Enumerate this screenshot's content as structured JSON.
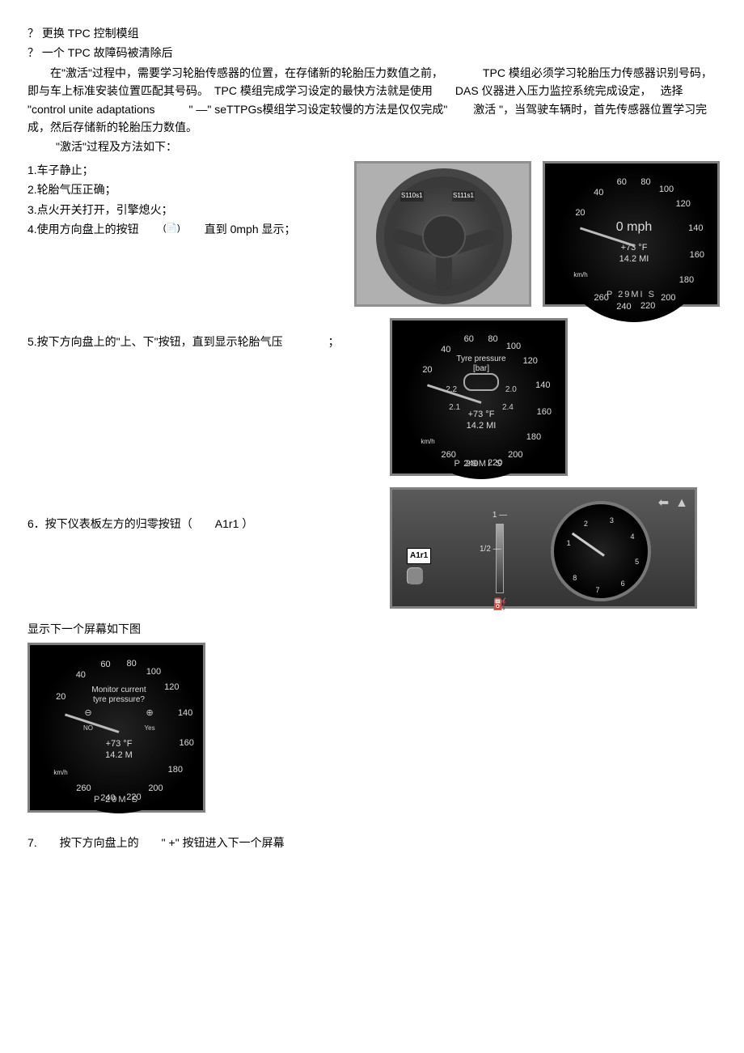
{
  "top_lines": [
    "？ 更换 TPC 控制模组",
    "？ 一个 TPC 故障码被清除后"
  ],
  "paragraph1": "在\"激活\"过程中，需要学习轮胎传感器的位置，在存储新的轮胎压力数值之前，　　　　TPC 模组必须学习轮胎压力传感器识别号码，　即与车上标准安装位置匹配其号码。　TPC 模组完成学习设定的最快方法就是使用　　DAS 仪器进入压力监控系统完成设定，　 选择 \"control unite adaptations　　　\" —\" seTTPGs模组学习设定较慢的方法是仅仅完成\"　　 激活 \"，当驾驶车辆时，首先传感器位置学习完成，然后存储新的轮胎压力数值。",
  "activation_heading": "\"激活\"过程及方法如下：",
  "steps_a": [
    "1.车子静止；",
    "2.轮胎气压正确；",
    "3.点火开关打开，引擎熄火；"
  ],
  "step4_prefix": "4.使用方向盘上的按钮",
  "step4_suffix": "直到 0mph 显示；",
  "wheel_labels": {
    "left": "S110s1",
    "right": "S111s1"
  },
  "gauge1": {
    "ticks": [
      {
        "v": "20",
        "ang": 210
      },
      {
        "v": "40",
        "ang": 235
      },
      {
        "v": "60",
        "ang": 258
      },
      {
        "v": "80",
        "ang": 280
      },
      {
        "v": "100",
        "ang": 300
      },
      {
        "v": "120",
        "ang": 320
      },
      {
        "v": "140",
        "ang": 345
      },
      {
        "v": "160",
        "ang": 10
      },
      {
        "v": "180",
        "ang": 35
      },
      {
        "v": "200",
        "ang": 58
      },
      {
        "v": "220",
        "ang": 78
      },
      {
        "v": "240",
        "ang": 100
      },
      {
        "v": "260",
        "ang": 122
      }
    ],
    "center_main": "0 mph",
    "center_sub1": "+73 °F",
    "center_sub2": "14.2 MI",
    "unit": "km/h",
    "bottom": "P    29MI  S",
    "needle_ang": 198
  },
  "step5": "5.按下方向盘上的\"上、下\"按钮，直到显示轮胎气压　　　　；",
  "gauge2": {
    "center_title": "Tyre pressure",
    "center_unit": "[bar]",
    "fl": "2.2",
    "fr": "2.0",
    "rl": "2.1",
    "rr": "2.4",
    "sub1": "+73 °F",
    "sub2": "14.2 MI",
    "unit": "km/h",
    "bottom": "P    29MI  S"
  },
  "step6": "6．按下仪表板左方的归零按钮（　　A1r1 ）",
  "dash": {
    "label": "A1r1",
    "fuel_top": "1 —",
    "fuel_mid": "1/2 —",
    "tacho_nums": [
      "1",
      "2",
      "3",
      "4",
      "5",
      "6",
      "7",
      "8"
    ]
  },
  "caption_below": "显示下一个屏幕如下图",
  "gauge3": {
    "center_line1": "Monitor current",
    "center_line2": "tyre pressure?",
    "no_sym": "⊖",
    "no_label": "NO",
    "yes_sym": "⊕",
    "yes_label": "Yes",
    "sub1": "+73 °F",
    "sub2": "14.2 M",
    "unit": "km/h",
    "bottom": "P    29M  S"
  },
  "step7": "7.　　按下方向盘上的　　\" +\" 按钮进入下一个屏幕",
  "colors": {
    "body_text": "#000000",
    "gauge_bg": "#000000",
    "gauge_border": "#808080",
    "gauge_text": "#dddddd"
  }
}
